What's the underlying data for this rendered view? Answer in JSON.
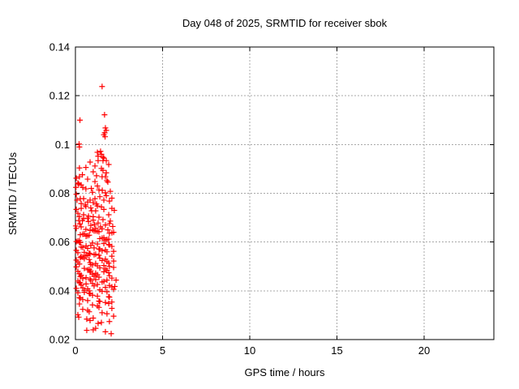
{
  "title": "Day 048 of 2025, SRMTID for receiver sbok",
  "chart_data": {
    "type": "scatter",
    "title": "Day 048 of 2025, SRMTID for receiver sbok",
    "xlabel": "GPS time / hours",
    "ylabel": "SRMTID / TECUs",
    "xlim": [
      0,
      24
    ],
    "ylim": [
      0.02,
      0.14
    ],
    "xticks": [
      0,
      5,
      10,
      15,
      20
    ],
    "xtick_labels": [
      "0",
      "5",
      "10",
      "15",
      "20"
    ],
    "yticks": [
      0.02,
      0.04,
      0.06,
      0.08,
      0.1,
      0.12,
      0.14
    ],
    "ytick_labels": [
      "0.02",
      "0.04",
      "0.06",
      "0.08",
      "0.1",
      "0.12",
      "0.14"
    ],
    "grid": true,
    "legend_position": "none",
    "marker": "plus",
    "marker_color": "#ff0000",
    "grid_color": "#a8a8a8",
    "axis_color": "#000000",
    "background_color": "#ffffff",
    "series_name": "SRMTID",
    "points": [
      [
        1.53,
        0.1238
      ],
      [
        1.67,
        0.1122
      ],
      [
        0.26,
        0.11
      ],
      [
        1.72,
        0.1068
      ],
      [
        1.77,
        0.1058
      ],
      [
        1.63,
        0.104
      ],
      [
        1.7,
        0.1032
      ],
      [
        1.68,
        0.1048
      ],
      [
        0.21,
        0.1002
      ],
      [
        0.23,
        0.099
      ],
      [
        1.49,
        0.096
      ],
      [
        1.58,
        0.0948
      ],
      [
        1.3,
        0.0952
      ],
      [
        1.26,
        0.0968
      ],
      [
        1.44,
        0.0972
      ],
      [
        1.3,
        0.0934
      ],
      [
        1.58,
        0.0934
      ],
      [
        1.77,
        0.0934
      ],
      [
        0.23,
        0.0904
      ],
      [
        1.49,
        0.0902
      ],
      [
        1.12,
        0.0912
      ],
      [
        0.84,
        0.0928
      ],
      [
        1.91,
        0.0918
      ],
      [
        0.6,
        0.0906
      ],
      [
        1.63,
        0.0944
      ],
      [
        1.58,
        0.0894
      ],
      [
        1.02,
        0.0888
      ],
      [
        1.77,
        0.0884
      ],
      [
        0.23,
        0.0868
      ],
      [
        1.53,
        0.0868
      ],
      [
        1.72,
        0.0868
      ],
      [
        1.12,
        0.0848
      ],
      [
        1.81,
        0.0852
      ],
      [
        0.05,
        0.0862
      ],
      [
        1.21,
        0.0872
      ],
      [
        0.7,
        0.0858
      ],
      [
        0.4,
        0.0876
      ],
      [
        0.19,
        0.0838
      ],
      [
        0.33,
        0.0834
      ],
      [
        0.03,
        0.0824
      ],
      [
        0.42,
        0.0824
      ],
      [
        1.35,
        0.0814
      ],
      [
        0.98,
        0.0804
      ],
      [
        1.72,
        0.0802
      ],
      [
        2.0,
        0.0808
      ],
      [
        0.6,
        0.0818
      ],
      [
        0.14,
        0.0842
      ],
      [
        1.26,
        0.083
      ],
      [
        1.86,
        0.0846
      ],
      [
        0.91,
        0.082
      ],
      [
        1.54,
        0.0812
      ],
      [
        0.28,
        0.0778
      ],
      [
        0.47,
        0.0778
      ],
      [
        0.84,
        0.0772
      ],
      [
        1.12,
        0.0778
      ],
      [
        1.63,
        0.0772
      ],
      [
        1.95,
        0.0768
      ],
      [
        1.02,
        0.0762
      ],
      [
        0.56,
        0.0752
      ],
      [
        0.7,
        0.0764
      ],
      [
        0.33,
        0.0758
      ],
      [
        0.09,
        0.0772
      ],
      [
        1.4,
        0.0786
      ],
      [
        2.09,
        0.078
      ],
      [
        1.77,
        0.079
      ],
      [
        0.05,
        0.0796
      ],
      [
        1.21,
        0.0756
      ],
      [
        0.23,
        0.0704
      ],
      [
        0.47,
        0.0712
      ],
      [
        1.02,
        0.0704
      ],
      [
        1.35,
        0.0702
      ],
      [
        0.05,
        0.0734
      ],
      [
        0.93,
        0.0728
      ],
      [
        1.63,
        0.0734
      ],
      [
        2.09,
        0.0738
      ],
      [
        1.16,
        0.0728
      ],
      [
        0.6,
        0.0746
      ],
      [
        0.33,
        0.0738
      ],
      [
        1.49,
        0.0744
      ],
      [
        1.91,
        0.0712
      ],
      [
        0.14,
        0.0718
      ],
      [
        0.75,
        0.0706
      ],
      [
        1.26,
        0.0748
      ],
      [
        2.23,
        0.073
      ],
      [
        0.88,
        0.074
      ],
      [
        0.05,
        0.0656
      ],
      [
        0.19,
        0.0688
      ],
      [
        0.33,
        0.0662
      ],
      [
        0.47,
        0.0696
      ],
      [
        0.6,
        0.0652
      ],
      [
        0.75,
        0.0684
      ],
      [
        0.88,
        0.0668
      ],
      [
        1.02,
        0.069
      ],
      [
        1.16,
        0.0656
      ],
      [
        1.3,
        0.0678
      ],
      [
        1.44,
        0.0662
      ],
      [
        1.58,
        0.0692
      ],
      [
        1.72,
        0.067
      ],
      [
        1.86,
        0.065
      ],
      [
        2.0,
        0.0686
      ],
      [
        2.14,
        0.0664
      ],
      [
        0.26,
        0.0674
      ],
      [
        0.7,
        0.0698
      ],
      [
        1.09,
        0.0672
      ],
      [
        1.53,
        0.0654
      ],
      [
        1.95,
        0.0676
      ],
      [
        0.4,
        0.0688
      ],
      [
        0.02,
        0.0666
      ],
      [
        0.05,
        0.0602
      ],
      [
        0.61,
        0.0624
      ],
      [
        1.16,
        0.0646
      ],
      [
        1.72,
        0.0608
      ],
      [
        0.28,
        0.063
      ],
      [
        0.84,
        0.0648
      ],
      [
        1.4,
        0.0614
      ],
      [
        1.95,
        0.0636
      ],
      [
        0.14,
        0.0604
      ],
      [
        0.7,
        0.0626
      ],
      [
        1.26,
        0.0644
      ],
      [
        1.81,
        0.061
      ],
      [
        0.42,
        0.0632
      ],
      [
        0.98,
        0.065
      ],
      [
        1.53,
        0.0616
      ],
      [
        2.09,
        0.0638
      ],
      [
        0.23,
        0.0606
      ],
      [
        0.79,
        0.0628
      ],
      [
        1.35,
        0.0642
      ],
      [
        1.91,
        0.0612
      ],
      [
        0.51,
        0.0634
      ],
      [
        1.07,
        0.0646
      ],
      [
        1.63,
        0.0618
      ],
      [
        2.19,
        0.064
      ],
      [
        0.84,
        0.0552
      ],
      [
        1.4,
        0.057
      ],
      [
        1.95,
        0.0588
      ],
      [
        0.14,
        0.0556
      ],
      [
        0.7,
        0.0574
      ],
      [
        1.26,
        0.0592
      ],
      [
        1.81,
        0.056
      ],
      [
        0.42,
        0.0578
      ],
      [
        0.98,
        0.0596
      ],
      [
        1.53,
        0.0564
      ],
      [
        2.09,
        0.0582
      ],
      [
        0.23,
        0.0598
      ],
      [
        0.79,
        0.0554
      ],
      [
        1.35,
        0.0572
      ],
      [
        1.91,
        0.059
      ],
      [
        0.51,
        0.0558
      ],
      [
        1.07,
        0.0576
      ],
      [
        1.63,
        0.0594
      ],
      [
        2.19,
        0.0562
      ],
      [
        0.33,
        0.058
      ],
      [
        0.88,
        0.0586
      ],
      [
        0.05,
        0.0566
      ],
      [
        0.61,
        0.0584
      ],
      [
        1.16,
        0.055
      ],
      [
        1.72,
        0.0568
      ],
      [
        0.28,
        0.0598
      ],
      [
        1.26,
        0.0502
      ],
      [
        1.81,
        0.052
      ],
      [
        0.42,
        0.0538
      ],
      [
        0.98,
        0.0506
      ],
      [
        1.53,
        0.0524
      ],
      [
        2.09,
        0.0542
      ],
      [
        0.23,
        0.051
      ],
      [
        0.79,
        0.0528
      ],
      [
        1.35,
        0.0546
      ],
      [
        1.91,
        0.0514
      ],
      [
        0.51,
        0.0532
      ],
      [
        1.07,
        0.0548
      ],
      [
        1.63,
        0.0504
      ],
      [
        2.19,
        0.0522
      ],
      [
        0.33,
        0.054
      ],
      [
        0.88,
        0.0508
      ],
      [
        0.05,
        0.0526
      ],
      [
        0.61,
        0.0544
      ],
      [
        1.16,
        0.0512
      ],
      [
        1.72,
        0.053
      ],
      [
        0.28,
        0.0536
      ],
      [
        0.84,
        0.0516
      ],
      [
        1.4,
        0.0534
      ],
      [
        1.95,
        0.05
      ],
      [
        0.14,
        0.0518
      ],
      [
        0.7,
        0.0546
      ],
      [
        2.09,
        0.0452
      ],
      [
        0.23,
        0.047
      ],
      [
        0.79,
        0.0488
      ],
      [
        1.35,
        0.0456
      ],
      [
        1.91,
        0.0474
      ],
      [
        0.51,
        0.0492
      ],
      [
        1.07,
        0.046
      ],
      [
        1.63,
        0.0478
      ],
      [
        2.19,
        0.0496
      ],
      [
        0.33,
        0.0464
      ],
      [
        0.88,
        0.0482
      ],
      [
        0.05,
        0.0498
      ],
      [
        0.61,
        0.0454
      ],
      [
        1.16,
        0.0472
      ],
      [
        1.72,
        0.049
      ],
      [
        0.28,
        0.0458
      ],
      [
        0.84,
        0.0476
      ],
      [
        1.4,
        0.0494
      ],
      [
        1.95,
        0.0462
      ],
      [
        0.14,
        0.048
      ],
      [
        0.7,
        0.0486
      ],
      [
        1.26,
        0.0466
      ],
      [
        1.81,
        0.0484
      ],
      [
        0.42,
        0.045
      ],
      [
        0.98,
        0.0468
      ],
      [
        0.51,
        0.0402
      ],
      [
        1.07,
        0.042
      ],
      [
        1.63,
        0.0438
      ],
      [
        2.19,
        0.0406
      ],
      [
        0.33,
        0.0424
      ],
      [
        0.88,
        0.0442
      ],
      [
        0.05,
        0.041
      ],
      [
        0.61,
        0.0428
      ],
      [
        1.16,
        0.0446
      ],
      [
        1.72,
        0.0414
      ],
      [
        0.28,
        0.0432
      ],
      [
        0.84,
        0.0448
      ],
      [
        1.4,
        0.0404
      ],
      [
        1.95,
        0.0422
      ],
      [
        0.14,
        0.044
      ],
      [
        0.7,
        0.0408
      ],
      [
        1.26,
        0.0426
      ],
      [
        1.81,
        0.0444
      ],
      [
        0.42,
        0.0412
      ],
      [
        0.98,
        0.043
      ],
      [
        1.53,
        0.0436
      ],
      [
        2.09,
        0.0416
      ],
      [
        0.23,
        0.0434
      ],
      [
        0.79,
        0.04
      ],
      [
        2.33,
        0.0444
      ],
      [
        2.26,
        0.0418
      ],
      [
        1.72,
        0.0352
      ],
      [
        0.28,
        0.037
      ],
      [
        0.84,
        0.0388
      ],
      [
        1.4,
        0.0356
      ],
      [
        1.95,
        0.0374
      ],
      [
        0.14,
        0.0392
      ],
      [
        0.7,
        0.036
      ],
      [
        1.26,
        0.0378
      ],
      [
        1.81,
        0.0396
      ],
      [
        0.42,
        0.0364
      ],
      [
        0.98,
        0.0382
      ],
      [
        1.53,
        0.0398
      ],
      [
        2.09,
        0.0354
      ],
      [
        0.23,
        0.0372
      ],
      [
        0.79,
        0.039
      ],
      [
        1.35,
        0.0358
      ],
      [
        1.91,
        0.0376
      ],
      [
        0.51,
        0.0394
      ],
      [
        0.14,
        0.0302
      ],
      [
        0.7,
        0.032
      ],
      [
        1.26,
        0.0338
      ],
      [
        1.81,
        0.0306
      ],
      [
        0.42,
        0.0324
      ],
      [
        0.98,
        0.0342
      ],
      [
        1.53,
        0.031
      ],
      [
        2.09,
        0.0328
      ],
      [
        0.23,
        0.0346
      ],
      [
        0.79,
        0.0314
      ],
      [
        1.35,
        0.0332
      ],
      [
        1.91,
        0.0348
      ],
      [
        1.49,
        0.027
      ],
      [
        1.95,
        0.0274
      ],
      [
        0.19,
        0.0292
      ],
      [
        1.02,
        0.0288
      ],
      [
        0.65,
        0.0284
      ],
      [
        2.19,
        0.0296
      ],
      [
        1.3,
        0.0266
      ],
      [
        0.84,
        0.0278
      ],
      [
        2.05,
        0.0224
      ],
      [
        1.02,
        0.024
      ],
      [
        0.65,
        0.0238
      ],
      [
        1.16,
        0.0246
      ],
      [
        1.72,
        0.0232
      ]
    ]
  }
}
